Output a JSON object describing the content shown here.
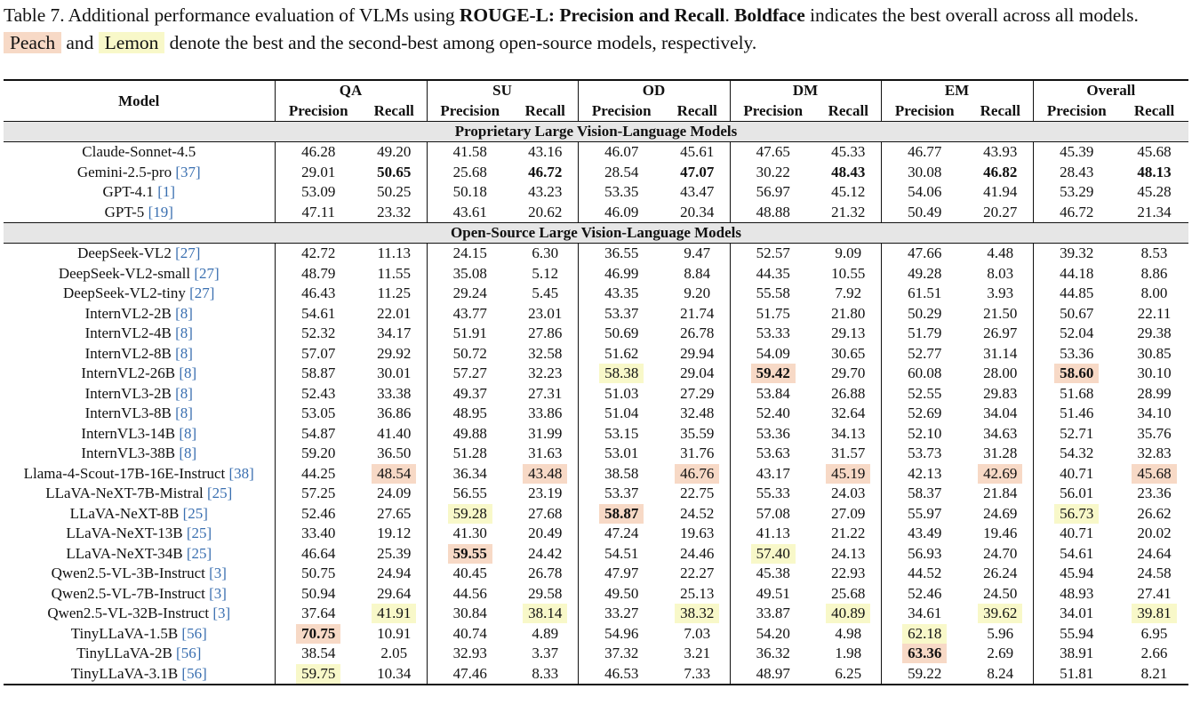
{
  "caption": {
    "prefix": "Table 7. Additional performance evaluation of VLMs using ",
    "metric": "ROUGE-L: Precision and Recall",
    "mid": ". ",
    "boldface_word": "Boldface",
    "after_boldface": " indicates the best overall across all models. ",
    "peach_label": "Peach",
    "and_word": " and ",
    "lemon_label": "Lemon",
    "suffix": " denote the best and the second-best among open-source models, respectively."
  },
  "header": {
    "model_label": "Model",
    "groups": [
      "QA",
      "SU",
      "OD",
      "DM",
      "EM",
      "Overall"
    ],
    "precision_label": "Precision",
    "recall_label": "Recall"
  },
  "sections": [
    {
      "title": "Proprietary Large Vision-Language Models",
      "rows": [
        {
          "model": "Claude-Sonnet-4.5",
          "cite": "",
          "values": [
            "46.28",
            "49.20",
            "41.58",
            "43.16",
            "46.07",
            "45.61",
            "47.65",
            "45.33",
            "46.77",
            "43.93",
            "45.39",
            "45.68"
          ],
          "marks": [
            "",
            "",
            "",
            "",
            "",
            "",
            "",
            "",
            "",
            "",
            "",
            ""
          ]
        },
        {
          "model": "Gemini-2.5-pro ",
          "cite": "[37]",
          "values": [
            "29.01",
            "50.65",
            "25.68",
            "46.72",
            "28.54",
            "47.07",
            "30.22",
            "48.43",
            "30.08",
            "46.82",
            "28.43",
            "48.13"
          ],
          "marks": [
            "",
            "b",
            "",
            "b",
            "",
            "b",
            "",
            "b",
            "",
            "b",
            "",
            "b"
          ]
        },
        {
          "model": "GPT-4.1 ",
          "cite": "[1]",
          "values": [
            "53.09",
            "50.25",
            "50.18",
            "43.23",
            "53.35",
            "43.47",
            "56.97",
            "45.12",
            "54.06",
            "41.94",
            "53.29",
            "45.28"
          ],
          "marks": [
            "",
            "",
            "",
            "",
            "",
            "",
            "",
            "",
            "",
            "",
            "",
            ""
          ]
        },
        {
          "model": "GPT-5 ",
          "cite": "[19]",
          "values": [
            "47.11",
            "23.32",
            "43.61",
            "20.62",
            "46.09",
            "20.34",
            "48.88",
            "21.32",
            "50.49",
            "20.27",
            "46.72",
            "21.34"
          ],
          "marks": [
            "",
            "",
            "",
            "",
            "",
            "",
            "",
            "",
            "",
            "",
            "",
            ""
          ]
        }
      ]
    },
    {
      "title": "Open-Source Large Vision-Language Models",
      "rows": [
        {
          "model": "DeepSeek-VL2 ",
          "cite": "[27]",
          "values": [
            "42.72",
            "11.13",
            "24.15",
            "6.30",
            "36.55",
            "9.47",
            "52.57",
            "9.09",
            "47.66",
            "4.48",
            "39.32",
            "8.53"
          ],
          "marks": [
            "",
            "",
            "",
            "",
            "",
            "",
            "",
            "",
            "",
            "",
            "",
            ""
          ]
        },
        {
          "model": "DeepSeek-VL2-small ",
          "cite": "[27]",
          "values": [
            "48.79",
            "11.55",
            "35.08",
            "5.12",
            "46.99",
            "8.84",
            "44.35",
            "10.55",
            "49.28",
            "8.03",
            "44.18",
            "8.86"
          ],
          "marks": [
            "",
            "",
            "",
            "",
            "",
            "",
            "",
            "",
            "",
            "",
            "",
            ""
          ]
        },
        {
          "model": "DeepSeek-VL2-tiny ",
          "cite": "[27]",
          "values": [
            "46.43",
            "11.25",
            "29.24",
            "5.45",
            "43.35",
            "9.20",
            "55.58",
            "7.92",
            "61.51",
            "3.93",
            "44.85",
            "8.00"
          ],
          "marks": [
            "",
            "",
            "",
            "",
            "",
            "",
            "",
            "",
            "",
            "",
            "",
            ""
          ]
        },
        {
          "model": "InternVL2-2B ",
          "cite": "[8]",
          "values": [
            "54.61",
            "22.01",
            "43.77",
            "23.01",
            "53.37",
            "21.74",
            "51.75",
            "21.80",
            "50.29",
            "21.50",
            "50.67",
            "22.11"
          ],
          "marks": [
            "",
            "",
            "",
            "",
            "",
            "",
            "",
            "",
            "",
            "",
            "",
            ""
          ]
        },
        {
          "model": "InternVL2-4B ",
          "cite": "[8]",
          "values": [
            "52.32",
            "34.17",
            "51.91",
            "27.86",
            "50.69",
            "26.78",
            "53.33",
            "29.13",
            "51.79",
            "26.97",
            "52.04",
            "29.38"
          ],
          "marks": [
            "",
            "",
            "",
            "",
            "",
            "",
            "",
            "",
            "",
            "",
            "",
            ""
          ]
        },
        {
          "model": "InternVL2-8B ",
          "cite": "[8]",
          "values": [
            "57.07",
            "29.92",
            "50.72",
            "32.58",
            "51.62",
            "29.94",
            "54.09",
            "30.65",
            "52.77",
            "31.14",
            "53.36",
            "30.85"
          ],
          "marks": [
            "",
            "",
            "",
            "",
            "",
            "",
            "",
            "",
            "",
            "",
            "",
            ""
          ]
        },
        {
          "model": "InternVL2-26B ",
          "cite": "[8]",
          "values": [
            "58.87",
            "30.01",
            "57.27",
            "32.23",
            "58.38",
            "29.04",
            "59.42",
            "29.70",
            "60.08",
            "28.00",
            "58.60",
            "30.10"
          ],
          "marks": [
            "",
            "",
            "",
            "",
            "l",
            "",
            "pb",
            "",
            "",
            "",
            "pb",
            ""
          ]
        },
        {
          "model": "InternVL3-2B ",
          "cite": "[8]",
          "values": [
            "52.43",
            "33.38",
            "49.37",
            "27.31",
            "51.03",
            "27.29",
            "53.84",
            "26.88",
            "52.55",
            "29.83",
            "51.68",
            "28.99"
          ],
          "marks": [
            "",
            "",
            "",
            "",
            "",
            "",
            "",
            "",
            "",
            "",
            "",
            ""
          ]
        },
        {
          "model": "InternVL3-8B ",
          "cite": "[8]",
          "values": [
            "53.05",
            "36.86",
            "48.95",
            "33.86",
            "51.04",
            "32.48",
            "52.40",
            "32.64",
            "52.69",
            "34.04",
            "51.46",
            "34.10"
          ],
          "marks": [
            "",
            "",
            "",
            "",
            "",
            "",
            "",
            "",
            "",
            "",
            "",
            ""
          ]
        },
        {
          "model": "InternVL3-14B ",
          "cite": "[8]",
          "values": [
            "54.87",
            "41.40",
            "49.88",
            "31.99",
            "53.15",
            "35.59",
            "53.36",
            "34.13",
            "52.10",
            "34.63",
            "52.71",
            "35.76"
          ],
          "marks": [
            "",
            "",
            "",
            "",
            "",
            "",
            "",
            "",
            "",
            "",
            "",
            ""
          ]
        },
        {
          "model": "InternVL3-38B ",
          "cite": "[8]",
          "values": [
            "59.20",
            "36.50",
            "51.28",
            "31.63",
            "53.01",
            "31.76",
            "53.63",
            "31.57",
            "53.73",
            "31.28",
            "54.32",
            "32.83"
          ],
          "marks": [
            "",
            "",
            "",
            "",
            "",
            "",
            "",
            "",
            "",
            "",
            "",
            ""
          ]
        },
        {
          "model": "Llama-4-Scout-17B-16E-Instruct ",
          "cite": "[38]",
          "values": [
            "44.25",
            "48.54",
            "36.34",
            "43.48",
            "38.58",
            "46.76",
            "43.17",
            "45.19",
            "42.13",
            "42.69",
            "40.71",
            "45.68"
          ],
          "marks": [
            "",
            "p",
            "",
            "p",
            "",
            "p",
            "",
            "p",
            "",
            "p",
            "",
            "p"
          ]
        },
        {
          "model": "LLaVA-NeXT-7B-Mistral ",
          "cite": "[25]",
          "values": [
            "57.25",
            "24.09",
            "56.55",
            "23.19",
            "53.37",
            "22.75",
            "55.33",
            "24.03",
            "58.37",
            "21.84",
            "56.01",
            "23.36"
          ],
          "marks": [
            "",
            "",
            "",
            "",
            "",
            "",
            "",
            "",
            "",
            "",
            "",
            ""
          ]
        },
        {
          "model": "LLaVA-NeXT-8B ",
          "cite": "[25]",
          "values": [
            "52.46",
            "27.65",
            "59.28",
            "27.68",
            "58.87",
            "24.52",
            "57.08",
            "27.09",
            "55.97",
            "24.69",
            "56.73",
            "26.62"
          ],
          "marks": [
            "",
            "",
            "l",
            "",
            "pb",
            "",
            "",
            "",
            "",
            "",
            "l",
            ""
          ]
        },
        {
          "model": "LLaVA-NeXT-13B ",
          "cite": "[25]",
          "values": [
            "33.40",
            "19.12",
            "41.30",
            "20.49",
            "47.24",
            "19.63",
            "41.13",
            "21.22",
            "43.49",
            "19.46",
            "40.71",
            "20.02"
          ],
          "marks": [
            "",
            "",
            "",
            "",
            "",
            "",
            "",
            "",
            "",
            "",
            "",
            ""
          ]
        },
        {
          "model": "LLaVA-NeXT-34B ",
          "cite": "[25]",
          "values": [
            "46.64",
            "25.39",
            "59.55",
            "24.42",
            "54.51",
            "24.46",
            "57.40",
            "24.13",
            "56.93",
            "24.70",
            "54.61",
            "24.64"
          ],
          "marks": [
            "",
            "",
            "pb",
            "",
            "",
            "",
            "l",
            "",
            "",
            "",
            "",
            ""
          ]
        },
        {
          "model": "Qwen2.5-VL-3B-Instruct ",
          "cite": "[3]",
          "values": [
            "50.75",
            "24.94",
            "40.45",
            "26.78",
            "47.97",
            "22.27",
            "45.38",
            "22.93",
            "44.52",
            "26.24",
            "45.94",
            "24.58"
          ],
          "marks": [
            "",
            "",
            "",
            "",
            "",
            "",
            "",
            "",
            "",
            "",
            "",
            ""
          ]
        },
        {
          "model": "Qwen2.5-VL-7B-Instruct ",
          "cite": "[3]",
          "values": [
            "50.94",
            "29.64",
            "44.56",
            "29.58",
            "49.50",
            "25.13",
            "49.51",
            "25.68",
            "52.46",
            "24.50",
            "48.93",
            "27.41"
          ],
          "marks": [
            "",
            "",
            "",
            "",
            "",
            "",
            "",
            "",
            "",
            "",
            "",
            ""
          ]
        },
        {
          "model": "Qwen2.5-VL-32B-Instruct ",
          "cite": "[3]",
          "values": [
            "37.64",
            "41.91",
            "30.84",
            "38.14",
            "33.27",
            "38.32",
            "33.87",
            "40.89",
            "34.61",
            "39.62",
            "34.01",
            "39.81"
          ],
          "marks": [
            "",
            "l",
            "",
            "l",
            "",
            "l",
            "",
            "l",
            "",
            "l",
            "",
            "l"
          ]
        },
        {
          "model": "TinyLLaVA-1.5B ",
          "cite": "[56]",
          "values": [
            "70.75",
            "10.91",
            "40.74",
            "4.89",
            "54.96",
            "7.03",
            "54.20",
            "4.98",
            "62.18",
            "5.96",
            "55.94",
            "6.95"
          ],
          "marks": [
            "pb",
            "",
            "",
            "",
            "",
            "",
            "",
            "",
            "l",
            "",
            "",
            ""
          ]
        },
        {
          "model": "TinyLLaVA-2B ",
          "cite": "[56]",
          "values": [
            "38.54",
            "2.05",
            "32.93",
            "3.37",
            "37.32",
            "3.21",
            "36.32",
            "1.98",
            "63.36",
            "2.69",
            "38.91",
            "2.66"
          ],
          "marks": [
            "",
            "",
            "",
            "",
            "",
            "",
            "",
            "",
            "pb",
            "",
            "",
            ""
          ]
        },
        {
          "model": "TinyLLaVA-3.1B ",
          "cite": "[56]",
          "values": [
            "59.75",
            "10.34",
            "47.46",
            "8.33",
            "46.53",
            "7.33",
            "48.97",
            "6.25",
            "59.22",
            "8.24",
            "51.81",
            "8.21"
          ],
          "marks": [
            "l",
            "",
            "",
            "",
            "",
            "",
            "",
            "",
            "",
            "",
            "",
            ""
          ]
        }
      ]
    }
  ],
  "colors": {
    "peach": "#f7d9c6",
    "lemon": "#f8f8c9",
    "cite": "#3a6fb0",
    "section_bg": "#e6e6e6"
  }
}
